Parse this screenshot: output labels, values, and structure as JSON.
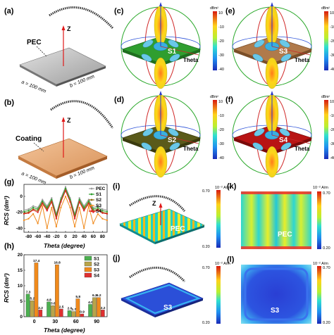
{
  "panels": {
    "a": {
      "label": "(a)",
      "material": "PEC",
      "axis": "Z",
      "dim_a": "a = 100 mm",
      "dim_b": "b = 100 mm"
    },
    "b": {
      "label": "(b)",
      "material": "Coating",
      "axis": "Z",
      "dim_a": "a = 100 mm",
      "dim_b": "b = 100 mm"
    },
    "c": {
      "label": "(c)",
      "sample": "S1",
      "theta": "Theta",
      "unit": "dBm²"
    },
    "d": {
      "label": "(d)",
      "sample": "S2",
      "theta": "Theta",
      "unit": "dBm²"
    },
    "e": {
      "label": "(e)",
      "sample": "S3",
      "theta": "Theta",
      "unit": "dBm²"
    },
    "f": {
      "label": "(f)",
      "sample": "S4",
      "theta": "Theta",
      "unit": "dBm²"
    },
    "g": {
      "label": "(g)"
    },
    "h": {
      "label": "(h)"
    },
    "i": {
      "label": "(i)",
      "sample": "PEC",
      "axis": "Z"
    },
    "j": {
      "label": "(j)",
      "sample": "S3",
      "axis": "Z"
    },
    "k": {
      "label": "(k)",
      "sample": "PEC"
    },
    "l": {
      "label": "(l)",
      "sample": "S3"
    }
  },
  "colorbar_rcs": {
    "ticks": [
      "10",
      "-10",
      "-20",
      "-30",
      "-40"
    ]
  },
  "colorbar_current": {
    "unit": "10⁻² A/m",
    "ticks": [
      "0.70",
      "0.20"
    ]
  },
  "chart_data": [
    {
      "type": "line",
      "panel": "g",
      "xlabel": "Theta (degree)",
      "ylabel": "RCS (dm²)",
      "xlim": [
        -90,
        90
      ],
      "ylim": [
        -45,
        15
      ],
      "xticks": [
        "-80",
        "-60",
        "-40",
        "-20",
        "0",
        "20",
        "40",
        "60",
        "80"
      ],
      "yticks": [
        "0",
        "-20",
        "-40"
      ],
      "x": [
        -90,
        -80,
        -70,
        -60,
        -50,
        -40,
        -30,
        -20,
        -10,
        0,
        10,
        20,
        30,
        40,
        50,
        60,
        70,
        80,
        90
      ],
      "series": [
        {
          "name": "PEC",
          "color": "#9a9a9a",
          "values": [
            -17,
            -16,
            -12,
            -14,
            -4,
            -12,
            -2,
            -22,
            -2,
            12,
            -2,
            -22,
            -2,
            -12,
            -4,
            -14,
            -12,
            -16,
            -17
          ]
        },
        {
          "name": "S1",
          "color": "#2e9e2e",
          "values": [
            -19,
            -18,
            -14,
            -16,
            -6,
            -14,
            -4,
            -24,
            -4,
            10,
            -4,
            -24,
            -4,
            -14,
            -6,
            -16,
            -14,
            -18,
            -19
          ]
        },
        {
          "name": "S2",
          "color": "#8a6a10",
          "values": [
            -21,
            -20,
            -16,
            -18,
            -8,
            -16,
            -6,
            -26,
            -6,
            8,
            -6,
            -26,
            -6,
            -16,
            -8,
            -18,
            -16,
            -20,
            -21
          ]
        },
        {
          "name": "S3",
          "color": "#f08a1c",
          "values": [
            -30,
            -28,
            -22,
            -34,
            -12,
            -40,
            -14,
            -38,
            -14,
            0,
            -14,
            -38,
            -14,
            -40,
            -12,
            -34,
            -22,
            -28,
            -30
          ]
        },
        {
          "name": "S4",
          "color": "#e02020",
          "values": [
            -22,
            -21,
            -17,
            -20,
            -9,
            -18,
            -7,
            -28,
            -7,
            7,
            -7,
            -28,
            -7,
            -18,
            -9,
            -20,
            -17,
            -21,
            -22
          ]
        }
      ]
    },
    {
      "type": "bar",
      "panel": "h",
      "xlabel": "Theta (degree)",
      "ylabel": "RCS (dm²)",
      "ylim": [
        0,
        20
      ],
      "yticks": [
        "0",
        "5",
        "10",
        "15",
        "20"
      ],
      "categories": [
        "0",
        "30",
        "60",
        "90"
      ],
      "series": [
        {
          "name": "S1",
          "color": "#4caf50",
          "values": [
            7.3,
            4.8,
            2.0,
            4.0
          ]
        },
        {
          "name": "S2",
          "color": "#b8a44a",
          "values": [
            5.2,
            3.6,
            1.7,
            6.2
          ]
        },
        {
          "name": "S3",
          "color": "#f08a1c",
          "values": [
            17.4,
            16.8,
            5.8,
            6.2
          ]
        },
        {
          "name": "S4",
          "color": "#e03030",
          "values": [
            2.2,
            2.5,
            0.9,
            2.2
          ]
        }
      ],
      "data_labels": [
        [
          "7.3",
          "5.2",
          "17.4",
          "2.2"
        ],
        [
          "4.8",
          "3.6",
          "16.8",
          "2.5"
        ],
        [
          "2.0",
          "1.7",
          "5.8",
          "0.9"
        ],
        [
          "4.0",
          "6.2",
          "6.2",
          "2.2"
        ]
      ]
    }
  ]
}
